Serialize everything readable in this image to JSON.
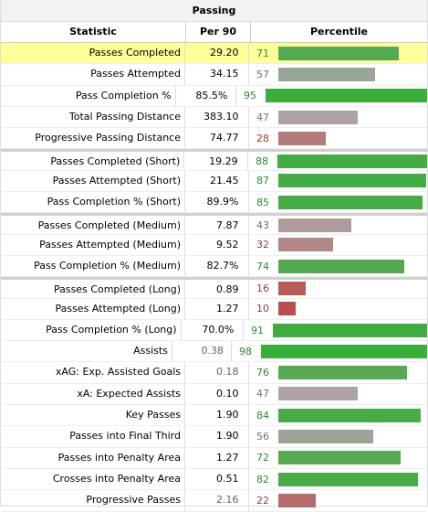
{
  "title": "Passing",
  "headers": {
    "statistic": "Statistic",
    "per90": "Per 90",
    "percentile": "Percentile"
  },
  "rows": [
    {
      "name": "Passes Completed",
      "per90": "29.20",
      "pct": 71,
      "highlight": true,
      "group_start": false,
      "color": "#56a853"
    },
    {
      "name": "Passes Attempted",
      "per90": "34.15",
      "pct": 57,
      "highlight": false,
      "group_start": false,
      "color": "#99a597"
    },
    {
      "name": "Pass Completion %",
      "per90": "85.5%",
      "pct": 95,
      "highlight": false,
      "group_start": false,
      "color": "#3cad3c"
    },
    {
      "name": "Total Passing Distance",
      "per90": "383.10",
      "pct": 47,
      "highlight": false,
      "group_start": false,
      "color": "#ada2a5"
    },
    {
      "name": "Progressive Passing Distance",
      "per90": "74.77",
      "pct": 28,
      "highlight": false,
      "group_start": false,
      "color": "#b37b7b"
    },
    {
      "name": "Passes Completed (Short)",
      "per90": "19.29",
      "pct": 88,
      "highlight": false,
      "group_start": true,
      "color": "#45ab44"
    },
    {
      "name": "Passes Attempted (Short)",
      "per90": "21.45",
      "pct": 87,
      "highlight": false,
      "group_start": false,
      "color": "#45ab44"
    },
    {
      "name": "Pass Completion % (Short)",
      "per90": "89.9%",
      "pct": 85,
      "highlight": false,
      "group_start": false,
      "color": "#47ab46"
    },
    {
      "name": "Passes Completed (Medium)",
      "per90": "7.87",
      "pct": 43,
      "highlight": false,
      "group_start": true,
      "color": "#ae9c9d"
    },
    {
      "name": "Passes Attempted (Medium)",
      "per90": "9.52",
      "pct": 32,
      "highlight": false,
      "group_start": false,
      "color": "#b28888"
    },
    {
      "name": "Pass Completion % (Medium)",
      "per90": "82.7%",
      "pct": 74,
      "highlight": false,
      "group_start": false,
      "color": "#54a851"
    },
    {
      "name": "Passes Completed (Long)",
      "per90": "0.89",
      "pct": 16,
      "highlight": false,
      "group_start": true,
      "color": "#b85a5a"
    },
    {
      "name": "Passes Attempted (Long)",
      "per90": "1.27",
      "pct": 10,
      "highlight": false,
      "group_start": false,
      "color": "#bc4d4d"
    },
    {
      "name": "Pass Completion % (Long)",
      "per90": "70.0%",
      "pct": 91,
      "highlight": false,
      "group_start": false,
      "color": "#40ac40"
    },
    {
      "name": "Assists",
      "per90": "0.38",
      "pct": 98,
      "highlight": false,
      "group_start": false,
      "color": "#3aae3a",
      "per90_muted": true
    },
    {
      "name": "xAG: Exp. Assisted Goals",
      "per90": "0.18",
      "pct": 76,
      "highlight": false,
      "group_start": false,
      "color": "#57a955",
      "per90_muted": true
    },
    {
      "name": "xA: Expected Assists",
      "per90": "0.10",
      "pct": 47,
      "highlight": false,
      "group_start": false,
      "color": "#ada2a5"
    },
    {
      "name": "Key Passes",
      "per90": "1.90",
      "pct": 84,
      "highlight": false,
      "group_start": false,
      "color": "#48ab47"
    },
    {
      "name": "Passes into Final Third",
      "per90": "1.90",
      "pct": 56,
      "highlight": false,
      "group_start": false,
      "color": "#9aa598"
    },
    {
      "name": "Passes into Penalty Area",
      "per90": "1.27",
      "pct": 72,
      "highlight": false,
      "group_start": false,
      "color": "#56a853"
    },
    {
      "name": "Crosses into Penalty Area",
      "per90": "0.51",
      "pct": 82,
      "highlight": false,
      "group_start": false,
      "color": "#4aab48"
    },
    {
      "name": "Progressive Passes",
      "per90": "2.16",
      "pct": 22,
      "highlight": false,
      "group_start": false,
      "color": "#b46c6c",
      "per90_muted": true
    }
  ]
}
